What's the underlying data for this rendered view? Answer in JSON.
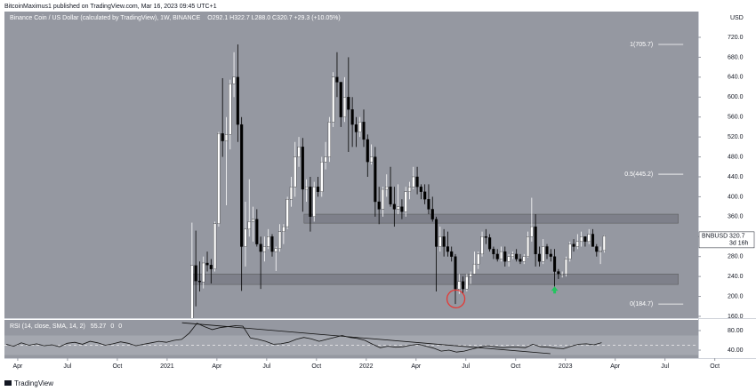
{
  "header": "BitcoinMaximus1 published on TradingView.com, Mar 16, 2023 09:45 UTC+1",
  "footer": "TradingView",
  "chart_data": {
    "type": "candlestick",
    "title": "Binance Coin / US Dollar (calculated by TradingView), 1W, BINANCE",
    "legend": "O292.1 H322.7 L288.0 C320.7 +29.3 (+10.05%)",
    "y_unit": "USD",
    "background": "#9598a1",
    "up_color": "#ffffff",
    "down_color": "#000000",
    "grid": false,
    "xlim": [
      2.2,
      44
    ],
    "xticks": [
      {
        "value": 3,
        "label": "Apr"
      },
      {
        "value": 6,
        "label": "Jul"
      },
      {
        "value": 9,
        "label": "Oct"
      },
      {
        "value": 12,
        "label": "2021"
      },
      {
        "value": 15,
        "label": "Apr"
      },
      {
        "value": 18,
        "label": "Jul"
      },
      {
        "value": 21,
        "label": "Oct"
      },
      {
        "value": 24,
        "label": "2022"
      },
      {
        "value": 27,
        "label": "Apr"
      },
      {
        "value": 30,
        "label": "Jul"
      },
      {
        "value": 33,
        "label": "Oct"
      },
      {
        "value": 36,
        "label": "2023"
      },
      {
        "value": 39,
        "label": "Apr"
      },
      {
        "value": 42,
        "label": "Jul"
      },
      {
        "value": 45,
        "label": "Oct"
      }
    ],
    "ylim": [
      156.4,
      771.7
    ],
    "yticks": [
      {
        "value": 160,
        "label": "160.0"
      },
      {
        "value": 200,
        "label": "200.0"
      },
      {
        "value": 240,
        "label": "240.0"
      },
      {
        "value": 280,
        "label": "280.0"
      },
      {
        "value": 320,
        "label": "320.0"
      },
      {
        "value": 360,
        "label": "360.0"
      },
      {
        "value": 400,
        "label": "400.0"
      },
      {
        "value": 440,
        "label": "440.0"
      },
      {
        "value": 480,
        "label": "480.0"
      },
      {
        "value": 520,
        "label": "520.0"
      },
      {
        "value": 560,
        "label": "560.0"
      },
      {
        "value": 600,
        "label": "600.0"
      },
      {
        "value": 640,
        "label": "640.0"
      },
      {
        "value": 680,
        "label": "680.0"
      },
      {
        "value": 720,
        "label": "720.0"
      }
    ],
    "x": [
      13.5,
      13.73,
      13.96,
      14.19,
      14.42,
      14.65,
      14.88,
      15.11,
      15.34,
      15.57,
      15.8,
      16.03,
      16.26,
      16.49,
      16.72,
      16.95,
      17.18,
      17.41,
      17.64,
      17.87,
      18.1,
      18.33,
      18.56,
      18.79,
      19.02,
      19.25,
      19.48,
      19.71,
      19.94,
      20.17,
      20.4,
      20.63,
      20.86,
      21.09,
      21.32,
      21.55,
      21.78,
      22.01,
      22.24,
      22.47,
      22.7,
      22.93,
      23.16,
      23.39,
      23.62,
      23.85,
      24.08,
      24.31,
      24.54,
      24.77,
      25,
      25.23,
      25.46,
      25.69,
      25.92,
      26.15,
      26.38,
      26.61,
      26.84,
      27.07,
      27.3,
      27.53,
      27.76,
      27.99,
      28.22,
      28.45,
      28.68,
      28.91,
      29.14,
      29.37,
      29.6,
      29.83,
      30.06,
      30.29,
      30.52,
      30.75,
      30.98,
      31.21,
      31.44,
      31.67,
      31.9,
      32.13,
      32.36,
      32.59,
      32.82,
      33.05,
      33.28,
      33.51,
      33.74,
      33.97,
      34.2,
      34.43,
      34.66,
      34.89,
      35.12,
      35.35,
      35.58,
      35.81,
      36.04,
      36.27,
      36.5,
      36.73,
      36.96,
      37.19,
      37.42,
      37.65,
      37.88,
      38.11,
      38.34
    ],
    "open": [
      130,
      262,
      231,
      229,
      267,
      263,
      255,
      346,
      527,
      512,
      525,
      627,
      640,
      545,
      300,
      335,
      350,
      355,
      305,
      290,
      300,
      320,
      290,
      296,
      330,
      340,
      395,
      420,
      480,
      500,
      415,
      420,
      360,
      420,
      410,
      470,
      480,
      550,
      640,
      630,
      560,
      600,
      575,
      545,
      530,
      550,
      515,
      470,
      480,
      390,
      375,
      415,
      420,
      385,
      375,
      380,
      370,
      410,
      420,
      440,
      420,
      410,
      395,
      375,
      355,
      300,
      320,
      300,
      290,
      280,
      215,
      230,
      215,
      240,
      245,
      265,
      285,
      320,
      318,
      295,
      285,
      275,
      290,
      270,
      280,
      285,
      275,
      270,
      280,
      320,
      340,
      285,
      270,
      300,
      285,
      280,
      250,
      245,
      245,
      275,
      305,
      300,
      310,
      320,
      310,
      325,
      300,
      290,
      292.1
    ],
    "high": [
      348,
      332,
      270,
      280,
      290,
      275,
      350,
      530,
      638,
      560,
      635,
      690,
      705.7,
      560,
      390,
      435,
      380,
      375,
      320,
      320,
      335,
      325,
      300,
      345,
      345,
      400,
      440,
      510,
      520,
      518,
      435,
      440,
      430,
      440,
      480,
      510,
      560,
      650,
      690,
      630,
      640,
      680,
      600,
      560,
      560,
      575,
      525,
      505,
      500,
      420,
      420,
      445,
      460,
      420,
      425,
      395,
      420,
      430,
      460,
      460,
      425,
      425,
      425,
      400,
      360,
      340,
      335,
      330,
      300,
      285,
      245,
      240,
      245,
      250,
      290,
      290,
      330,
      335,
      325,
      300,
      295,
      300,
      300,
      285,
      290,
      295,
      285,
      285,
      330,
      398,
      365,
      300,
      315,
      305,
      295,
      295,
      255,
      250,
      280,
      310,
      315,
      325,
      330,
      320,
      335,
      335,
      305,
      300,
      322.7
    ],
    "low": [
      122,
      180,
      210,
      216,
      250,
      226,
      250,
      340,
      480,
      383,
      495,
      600,
      510,
      211,
      260,
      320,
      310,
      300,
      215,
      270,
      295,
      280,
      251,
      290,
      305,
      335,
      380,
      400,
      460,
      370,
      390,
      330,
      350,
      400,
      400,
      455,
      470,
      540,
      600,
      540,
      550,
      490,
      500,
      500,
      520,
      500,
      440,
      465,
      360,
      345,
      360,
      400,
      380,
      340,
      365,
      355,
      360,
      395,
      415,
      405,
      395,
      385,
      365,
      350,
      210,
      290,
      280,
      280,
      270,
      184.7,
      205,
      205,
      210,
      225,
      245,
      255,
      280,
      305,
      290,
      275,
      270,
      270,
      260,
      260,
      275,
      270,
      265,
      265,
      278,
      310,
      260,
      260,
      265,
      275,
      270,
      220,
      235,
      238,
      240,
      270,
      290,
      295,
      300,
      300,
      305,
      305,
      280,
      265,
      288.0
    ],
    "close": [
      262,
      231,
      229,
      267,
      263,
      255,
      346,
      527,
      512,
      525,
      627,
      640,
      545,
      300,
      335,
      350,
      355,
      305,
      290,
      300,
      320,
      290,
      296,
      330,
      340,
      395,
      420,
      480,
      500,
      415,
      420,
      360,
      420,
      410,
      470,
      480,
      550,
      640,
      630,
      560,
      600,
      575,
      545,
      530,
      550,
      515,
      470,
      480,
      390,
      375,
      415,
      420,
      385,
      375,
      380,
      370,
      410,
      420,
      440,
      420,
      410,
      395,
      375,
      355,
      300,
      320,
      300,
      290,
      280,
      215,
      230,
      215,
      240,
      245,
      265,
      285,
      320,
      318,
      295,
      285,
      275,
      290,
      270,
      280,
      285,
      275,
      270,
      280,
      320,
      340,
      285,
      270,
      300,
      285,
      280,
      250,
      245,
      245,
      275,
      305,
      300,
      310,
      320,
      310,
      325,
      300,
      290,
      291.4,
      320.7
    ],
    "zones": [
      {
        "x": [
          20.25,
          42.8
        ],
        "low": 347,
        "high": 365
      },
      {
        "x": [
          13.45,
          42.8
        ],
        "low": 224,
        "high": 245
      }
    ],
    "zone_color": "#6b6e78",
    "fib_levels": [
      {
        "label": "1(705.7)",
        "value": 705.7
      },
      {
        "label": "0.5(445.2)",
        "value": 445.2
      },
      {
        "label": "0(184.7)",
        "value": 184.7
      }
    ],
    "fib_x": [
      41.6,
      43.1
    ],
    "circle": {
      "x": 29.4,
      "y": 195,
      "color": "#e53935"
    },
    "arrow": {
      "x": 35.35,
      "y": 213,
      "color": "#22c55e"
    },
    "price_tag": {
      "symbol": "BNBUSD",
      "price": 320.7,
      "countdown": "3d 16h"
    },
    "rsi": {
      "title": "RSI (14, close, SMA, 14, 2)",
      "legend_values": [
        55.27,
        0,
        0
      ],
      "color": "#111111",
      "ylim": [
        25.5,
        101.8
      ],
      "yticks": [
        {
          "value": 80,
          "label": "80.00"
        },
        {
          "value": 40,
          "label": "40.00"
        }
      ],
      "band": [
        30,
        70
      ],
      "midline": 50,
      "x": [
        2.3,
        2.76,
        3.22,
        3.68,
        4.14,
        4.6,
        5.06,
        5.52,
        5.98,
        6.44,
        6.9,
        7.36,
        7.82,
        8.28,
        8.74,
        9.2,
        9.66,
        10.12,
        10.58,
        11.04,
        11.5,
        11.96,
        12.42,
        12.88,
        13.34,
        13.8,
        14.26,
        14.72,
        15.18,
        15.64,
        16.1,
        16.56,
        17.02,
        17.48,
        17.94,
        18.4,
        18.86,
        19.32,
        19.78,
        20.24,
        20.7,
        21.16,
        21.62,
        22.08,
        22.54,
        23,
        23.46,
        23.92,
        24.38,
        24.84,
        25.3,
        25.76,
        26.22,
        26.68,
        27.14,
        27.6,
        28.06,
        28.52,
        28.98,
        29.44,
        29.9,
        30.36,
        30.82,
        31.28,
        31.74,
        32.2,
        32.66,
        33.12,
        33.58,
        34.04,
        34.5,
        34.96,
        35.42,
        35.88,
        36.34,
        36.8,
        37.26,
        37.72,
        38.18
      ],
      "values": [
        52,
        48,
        55,
        50,
        53,
        49,
        51,
        47,
        54,
        56,
        52,
        58,
        55,
        50,
        53,
        57,
        54,
        49,
        52,
        55,
        58,
        56,
        60,
        62,
        75,
        95,
        88,
        82,
        86,
        88,
        90,
        89,
        65,
        62,
        58,
        52,
        53,
        56,
        62,
        66,
        63,
        58,
        62,
        66,
        70,
        66,
        64,
        60,
        52,
        45,
        48,
        46,
        47,
        50,
        52,
        48,
        44,
        38,
        40,
        36,
        38,
        42,
        46,
        49,
        47,
        45,
        46,
        46,
        45,
        52,
        47,
        46,
        44,
        43,
        48,
        52,
        53,
        51,
        55.27
      ],
      "trendline": {
        "x": [
          12.9,
          35.1
        ],
        "values": [
          96,
          32.7
        ]
      }
    }
  }
}
